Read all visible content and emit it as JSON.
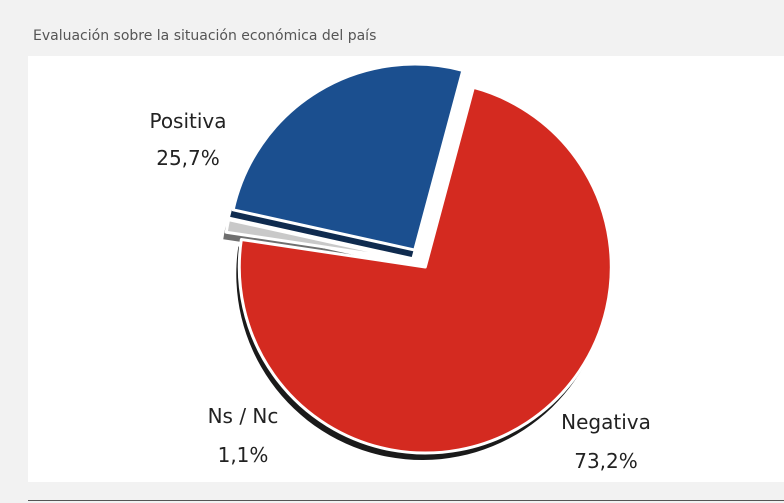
{
  "page": {
    "caption": "Evaluación sobre la situación económica del país"
  },
  "chart_data": {
    "type": "pie",
    "title": "",
    "slices": [
      {
        "name": "Negativa",
        "value": 73.2,
        "label": "73,2%",
        "color": "#d42a20"
      },
      {
        "name": "Ns / Nc",
        "value": 1.1,
        "label": "1,1%",
        "color": "#c9c9c9"
      },
      {
        "name": "Positiva",
        "value": 25.7,
        "label": "25,7%",
        "color": "#1b4f8f"
      }
    ],
    "exploded": true,
    "three_d": true
  }
}
